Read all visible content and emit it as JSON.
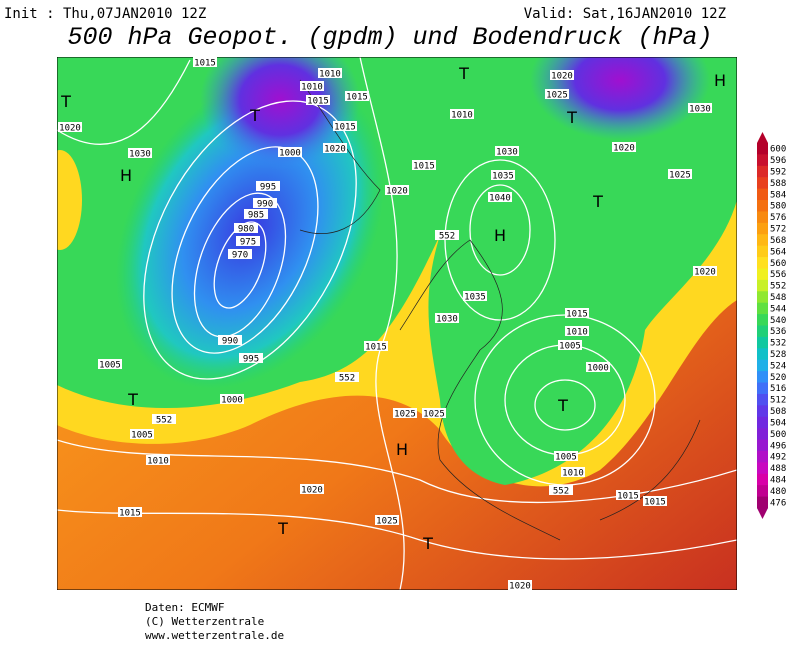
{
  "header": {
    "init": "Init : Thu,07JAN2010 12Z",
    "valid": "Valid: Sat,16JAN2010 12Z",
    "title": "500 hPa Geopot. (gpdm) und Bodendruck (hPa)"
  },
  "map": {
    "labels": [
      "1015",
      "1010",
      "1010",
      "1015",
      "1015",
      "1015",
      "1020",
      "1000",
      "995",
      "990",
      "985",
      "980",
      "975",
      "970",
      "990",
      "995",
      "1000",
      "1005",
      "1010",
      "1005",
      "1015",
      "1020",
      "1030",
      "1010",
      "1015",
      "1020",
      "1030",
      "1035",
      "1040",
      "1035",
      "1030",
      "1015",
      "1025",
      "1025",
      "1020",
      "1025",
      "1015",
      "1010",
      "1005",
      "1000",
      "1005",
      "1010",
      "1015",
      "1015",
      "1020",
      "1025",
      "1020",
      "1030",
      "1020",
      "1025",
      "1020",
      "552",
      "552",
      "552",
      "552",
      "H",
      "T",
      "T",
      "H",
      "T",
      "T",
      "H",
      "T",
      "H",
      "T",
      "T",
      "T",
      "T"
    ]
  },
  "colorbar": {
    "ticks": [
      600,
      596,
      592,
      588,
      584,
      580,
      576,
      572,
      568,
      564,
      560,
      556,
      552,
      548,
      544,
      540,
      536,
      532,
      528,
      524,
      520,
      516,
      512,
      508,
      504,
      500,
      496,
      492,
      488,
      484,
      480,
      476
    ],
    "colors": [
      "#b4002a",
      "#c8102e",
      "#dc2a28",
      "#e8401e",
      "#f05a14",
      "#f47010",
      "#f88a10",
      "#fca010",
      "#ffb814",
      "#ffcc18",
      "#ffe020",
      "#f0f020",
      "#c8f028",
      "#90e830",
      "#60e040",
      "#38d858",
      "#20d078",
      "#10c8a0",
      "#10c0c8",
      "#20b0e8",
      "#3090f8",
      "#4070f8",
      "#5050f0",
      "#6038e8",
      "#7028e0",
      "#8020d8",
      "#9818d0",
      "#b010c8",
      "#c808c0",
      "#d800a8",
      "#c00090",
      "#a00070"
    ]
  },
  "footer": {
    "lines": [
      "Daten: ECMWF",
      "(C) Wetterzentrale",
      "www.wetterzentrale.de"
    ]
  }
}
